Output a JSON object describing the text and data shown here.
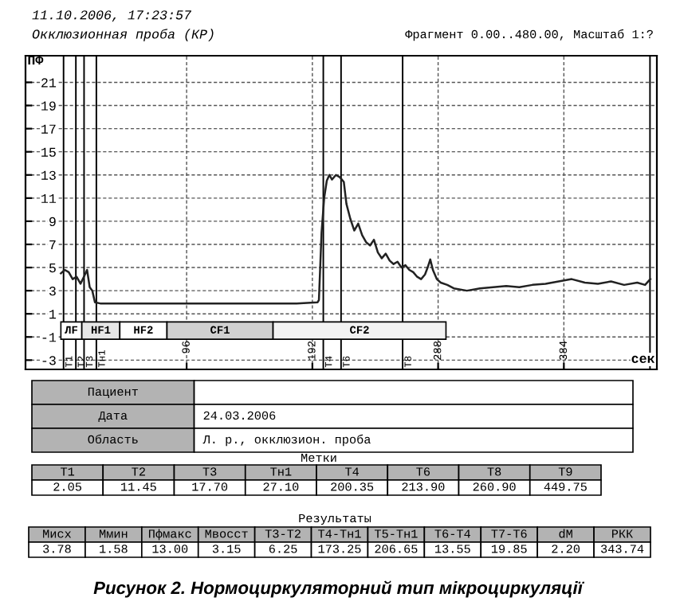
{
  "chart_data": {
    "type": "line",
    "title": "11.10.2006, 17:23:57",
    "subtitle": "Окклюзионная проба (КР)",
    "ylabel": "ПФ",
    "xlabel": "сек",
    "x": [
      0,
      3,
      6,
      9,
      12,
      15,
      18,
      20,
      22,
      24,
      26,
      30,
      60,
      100,
      140,
      180,
      196,
      197,
      199,
      201,
      203,
      205,
      207,
      210,
      213,
      216,
      218,
      221,
      224,
      227,
      230,
      233,
      236,
      239,
      242,
      245,
      248,
      251,
      254,
      257,
      260,
      263,
      266,
      269,
      272,
      275,
      278,
      280,
      282,
      284,
      287,
      290,
      295,
      300,
      310,
      320,
      330,
      340,
      350,
      360,
      370,
      380,
      390,
      400,
      410,
      420,
      430,
      440,
      446,
      450
    ],
    "series": [
      {
        "color": "#222222",
        "values": [
          4.5,
          4.8,
          4.6,
          4.0,
          4.2,
          3.6,
          4.3,
          4.8,
          3.3,
          3.0,
          2.0,
          1.9,
          1.9,
          1.9,
          1.9,
          1.9,
          2.0,
          2.2,
          8,
          11,
          12.5,
          13,
          12.6,
          13,
          12.8,
          12.4,
          10.5,
          9.2,
          8.2,
          8.8,
          7.8,
          7.2,
          6.9,
          7.4,
          6.3,
          5.8,
          6.2,
          5.6,
          5.3,
          5.5,
          5.0,
          5.2,
          4.8,
          4.6,
          4.2,
          4.0,
          4.4,
          5.0,
          5.7,
          4.8,
          4.0,
          3.7,
          3.5,
          3.2,
          3.0,
          3.2,
          3.3,
          3.4,
          3.3,
          3.5,
          3.6,
          3.8,
          4.0,
          3.7,
          3.6,
          3.8,
          3.5,
          3.7,
          3.5,
          4.0
        ]
      }
    ],
    "xlim": [
      -27,
      455
    ],
    "xticks": [
      96,
      192,
      288,
      384
    ],
    "ylim": [
      -3.8,
      23.3
    ],
    "yticks": [
      -3,
      -1,
      1,
      3,
      5,
      7,
      9,
      11,
      13,
      15,
      17,
      19,
      21
    ],
    "grid": true,
    "line_style": "solid",
    "ref_lines": [
      {
        "axis": "x",
        "value": 2.05,
        "label": "T1",
        "color": "#000000"
      },
      {
        "axis": "x",
        "value": 11.45,
        "label": "T2",
        "color": "#000000"
      },
      {
        "axis": "x",
        "value": 17.7,
        "label": "T3",
        "color": "#000000"
      },
      {
        "axis": "x",
        "value": 27.1,
        "label": "Тн1",
        "color": "#000000"
      },
      {
        "axis": "x",
        "value": 200.35,
        "label": "Т4",
        "color": "#000000"
      },
      {
        "axis": "x",
        "value": 213.9,
        "label": "Т6",
        "color": "#000000"
      },
      {
        "axis": "x",
        "value": 260.9,
        "label": "Т8",
        "color": "#000000"
      },
      {
        "axis": "x",
        "value": 449.75,
        "color": "#000000"
      }
    ],
    "bands": [
      {
        "axis": "x",
        "from": 0,
        "to": 16,
        "label": "ЛF",
        "color": "#ffffff"
      },
      {
        "axis": "x",
        "from": 16,
        "to": 45,
        "label": "HF1",
        "color": "#e6e6e6"
      },
      {
        "axis": "x",
        "from": 45,
        "to": 81,
        "label": "HF2",
        "color": "#ffffff"
      },
      {
        "axis": "x",
        "from": 81,
        "to": 162,
        "label": "CF1",
        "color": "#d0d0d0"
      },
      {
        "axis": "x",
        "from": 162,
        "to": 294,
        "label": "CF2",
        "color": "#f2f2f2"
      }
    ],
    "annotations": [
      "Фрагмент 0.00..480.00, Масштаб 1:?",
      "Пациент",
      "Дата",
      "24.03.2006",
      "Область",
      "Л. р., окклюзион. проба",
      "Метки",
      "Т1",
      "Т2",
      "Т3",
      "Тн1",
      "Т4",
      "Т6",
      "Т8",
      "Т9",
      "2.05",
      "11.45",
      "17.70",
      "27.10",
      "200.35",
      "213.90",
      "260.90",
      "449.75",
      "Результаты",
      "Мисх",
      "Ммин",
      "Пфмакс",
      "Мвосст",
      "Т3-Т2",
      "Т4-Тн1",
      "Т5-Тн1",
      "Т6-Т4",
      "Т7-Т6",
      "dM",
      "РКК",
      "3.78",
      "1.58",
      "13.00",
      "3.15",
      "6.25",
      "173.25",
      "206.65",
      "13.55",
      "19.85",
      "2.20",
      "343.74",
      "Рисунок 2. Нормоциркуляторний тип мікроциркуляції"
    ]
  }
}
